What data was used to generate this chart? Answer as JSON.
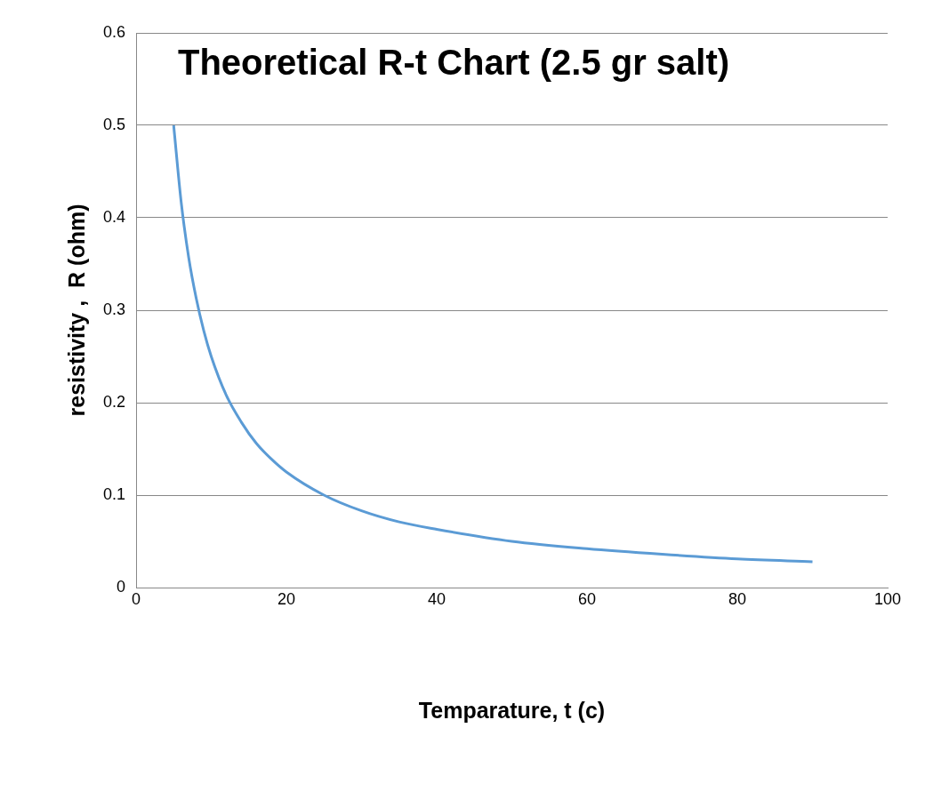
{
  "chart_data": {
    "type": "line",
    "title": "Theoretical R-t Chart (2.5 gr salt)",
    "xlabel": "Temparature, t (c)",
    "ylabel": "resistivity ,  R (ohm)",
    "x": [
      5,
      6,
      7,
      8,
      9,
      10,
      12,
      14,
      16,
      18,
      20,
      25,
      30,
      35,
      40,
      50,
      60,
      70,
      80,
      90
    ],
    "series": [
      {
        "color": "#5b9bd5",
        "values": [
          0.5,
          0.417,
          0.357,
          0.313,
          0.278,
          0.25,
          0.208,
          0.179,
          0.156,
          0.139,
          0.125,
          0.1,
          0.083,
          0.071,
          0.063,
          0.05,
          0.042,
          0.036,
          0.031,
          0.028
        ]
      }
    ],
    "xlim": [
      0,
      100
    ],
    "xticks": [
      0,
      20,
      40,
      60,
      80,
      100
    ],
    "ylim": [
      0,
      0.6
    ],
    "yticks": [
      0,
      0.1,
      0.2,
      0.3,
      0.4,
      0.5,
      0.6
    ],
    "grid": "y",
    "legend": false,
    "marker": "none",
    "line_style": "solid"
  }
}
